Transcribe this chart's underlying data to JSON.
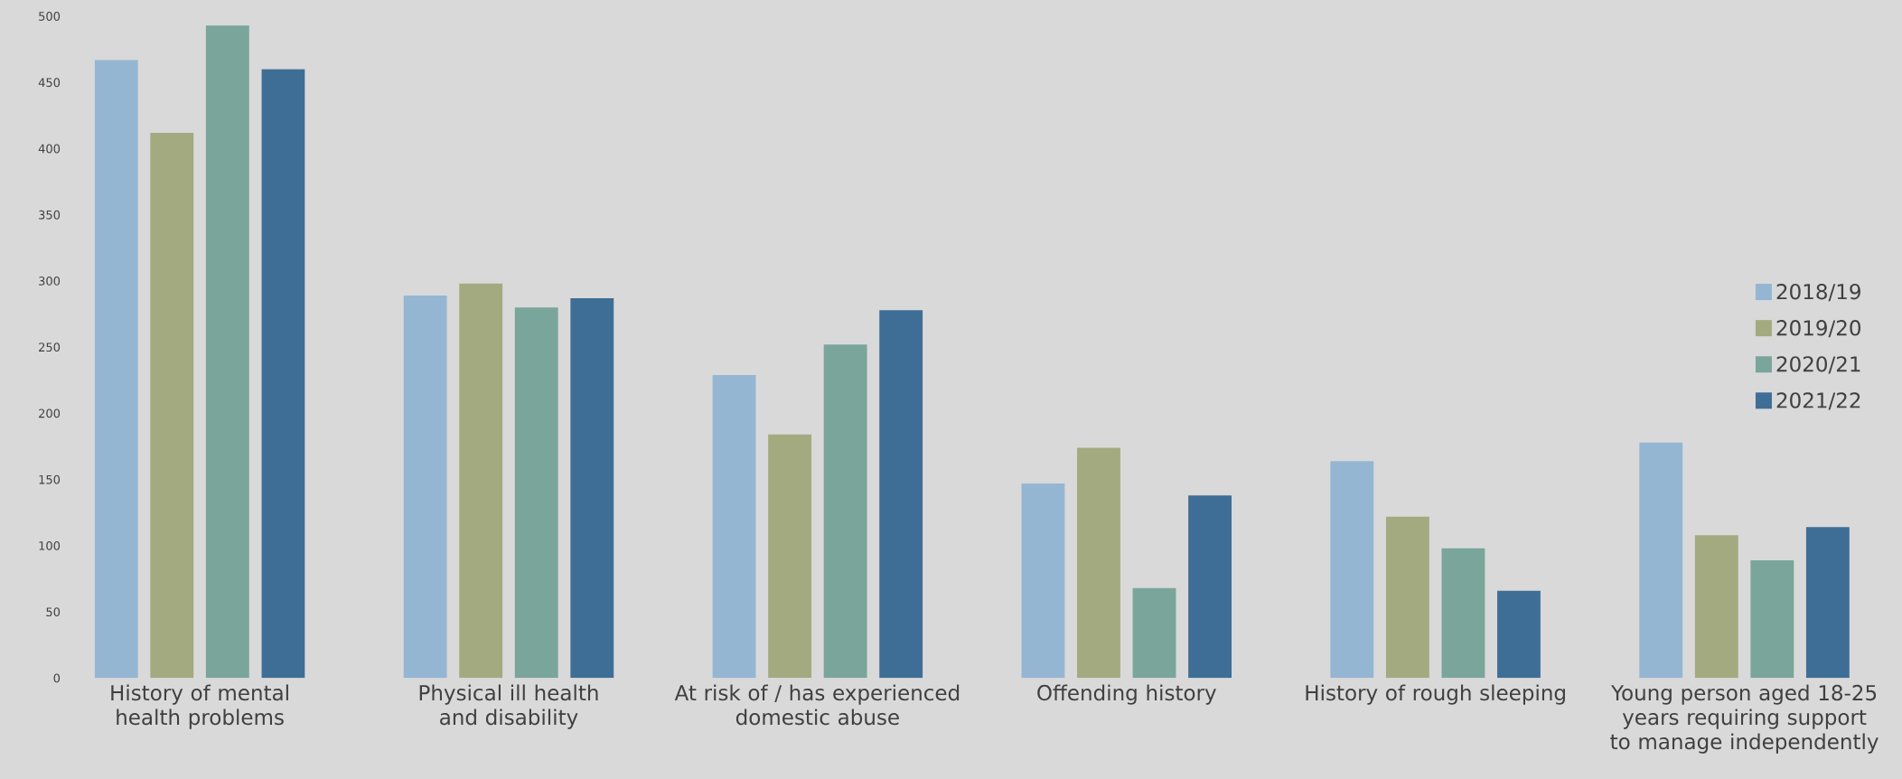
{
  "chart_data": {
    "type": "bar",
    "categories": [
      "History of mental health problems",
      "Physical ill health and disability",
      "At risk of / has experienced domestic abuse",
      "Offending history",
      "History of rough sleeping",
      "Young person aged 18-25 years requiring support to manage independently"
    ],
    "series": [
      {
        "name": "2018/19",
        "color": "#95b6d3",
        "values": [
          467,
          289,
          229,
          147,
          164,
          178
        ]
      },
      {
        "name": "2019/20",
        "color": "#a3aa80",
        "values": [
          412,
          298,
          184,
          174,
          122,
          108
        ]
      },
      {
        "name": "2020/21",
        "color": "#7aa59a",
        "values": [
          493,
          280,
          252,
          68,
          98,
          89
        ]
      },
      {
        "name": "2021/22",
        "color": "#3e6e96",
        "values": [
          460,
          287,
          278,
          138,
          66,
          114
        ]
      }
    ],
    "ylim": [
      0,
      500
    ],
    "yticks": [
      0,
      50,
      100,
      150,
      200,
      250,
      300,
      350,
      400,
      450,
      500
    ],
    "legend": "right"
  }
}
